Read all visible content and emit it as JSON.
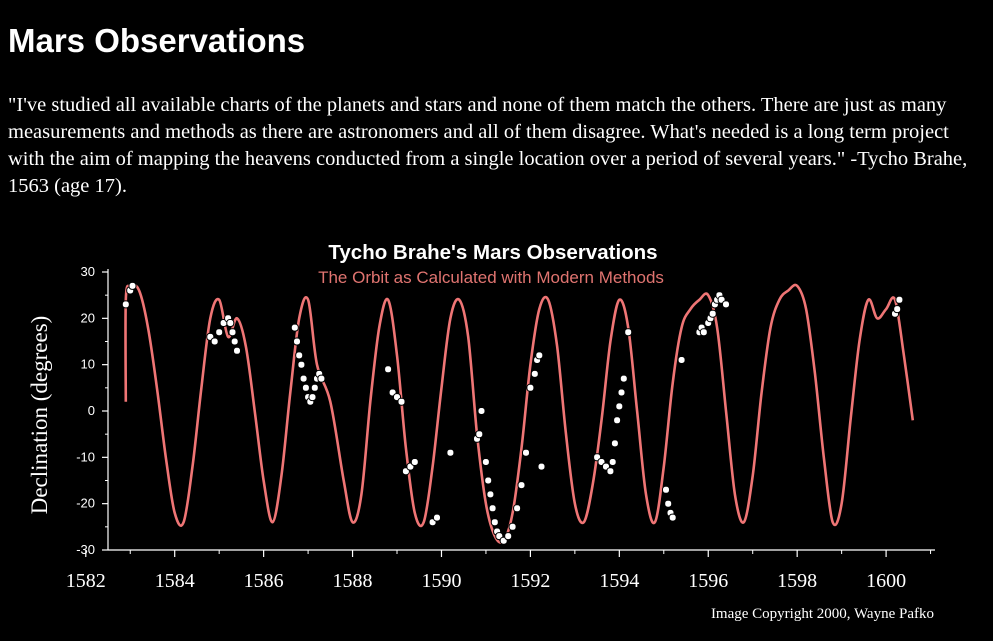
{
  "page": {
    "title": "Mars Observations",
    "quote": "\"I've studied all available charts of the planets and stars and none of them match the others. There are just as many measurements and methods as there are astronomers and all of them disagree. What's needed is a long term project with the aim of mapping the heavens conducted from a single location over a period of several years.\" -Tycho Brahe, 1563 (age 17)."
  },
  "colors": {
    "background": "#000000",
    "text": "#ffffff",
    "orbit": "#ef7575",
    "subtitle": "#e07470"
  },
  "chart_data": {
    "type": "line",
    "title": "Tycho Brahe's Mars Observations",
    "subtitle": "The Orbit as Calculated with Modern Methods",
    "ylabel": "Declination (degrees)",
    "xlabel": "",
    "credit": "Image Copyright 2000, Wayne Pafko",
    "xlim": [
      1581.6,
      1601.1
    ],
    "ylim": [
      -30,
      30
    ],
    "x_ticks": [
      1582,
      1584,
      1586,
      1588,
      1590,
      1592,
      1594,
      1596,
      1598,
      1600
    ],
    "x_tick_labels": [
      "1582",
      "1584",
      "1586",
      "1588",
      "1590",
      "1592",
      "1594",
      "1596",
      "1598",
      "1600"
    ],
    "y_ticks": [
      30,
      20,
      10,
      0,
      -10,
      -20,
      -30
    ],
    "y_tick_labels": [
      "30",
      "20",
      "10",
      "0",
      "-10",
      "-20",
      "-30"
    ],
    "grid": false,
    "legend": "none",
    "series": [
      {
        "type": "line",
        "x": [
          1582.9,
          1582.9,
          1583.0,
          1583.2,
          1583.4,
          1583.6,
          1583.8,
          1584.0,
          1584.2,
          1584.4,
          1584.6,
          1584.8,
          1585.0,
          1585.2,
          1585.4,
          1585.6,
          1585.8,
          1586.0,
          1586.2,
          1586.4,
          1586.6,
          1586.8,
          1587.0,
          1587.2,
          1587.5,
          1587.8,
          1588.0,
          1588.2,
          1588.4,
          1588.6,
          1588.8,
          1589.0,
          1589.2,
          1589.4,
          1589.6,
          1589.8,
          1590.0,
          1590.2,
          1590.4,
          1590.6,
          1590.8,
          1591.0,
          1591.2,
          1591.4,
          1591.6,
          1591.8,
          1592.0,
          1592.2,
          1592.4,
          1592.6,
          1592.8,
          1593.0,
          1593.2,
          1593.4,
          1593.6,
          1593.8,
          1594.0,
          1594.2,
          1594.4,
          1594.6,
          1594.8,
          1595.0,
          1595.2,
          1595.4,
          1595.6,
          1595.8,
          1596.0,
          1596.2,
          1596.4,
          1596.6,
          1596.8,
          1597.0,
          1597.2,
          1597.4,
          1597.6,
          1597.8,
          1598.0,
          1598.2,
          1598.4,
          1598.6,
          1598.8,
          1599.0,
          1599.2,
          1599.4,
          1599.6,
          1599.8,
          1600.0,
          1600.2,
          1600.4,
          1600.6
        ],
        "y": [
          2,
          24,
          27,
          26,
          18,
          5,
          -10,
          -22,
          -24,
          -12,
          5,
          20,
          24,
          16,
          20,
          14,
          0,
          -15,
          -24,
          -14,
          4,
          20,
          24,
          10,
          2,
          -15,
          -24,
          -18,
          2,
          18,
          24,
          12,
          -8,
          -22,
          -24,
          -12,
          5,
          20,
          24,
          16,
          -5,
          -20,
          -27,
          -28,
          -22,
          -8,
          10,
          22,
          24,
          14,
          -5,
          -20,
          -24,
          -16,
          -2,
          15,
          24,
          18,
          0,
          -18,
          -24,
          -12,
          6,
          18,
          22,
          24,
          25,
          18,
          0,
          -18,
          -24,
          -14,
          4,
          18,
          24,
          26,
          27,
          22,
          8,
          -10,
          -24,
          -20,
          -2,
          15,
          24,
          20,
          22,
          24,
          12,
          -2
        ]
      },
      {
        "type": "scatter",
        "x": [
          1582.9,
          1583.0,
          1583.05,
          1584.8,
          1584.9,
          1585.0,
          1585.1,
          1585.2,
          1585.25,
          1585.3,
          1585.35,
          1585.4,
          1586.7,
          1586.75,
          1586.8,
          1586.85,
          1586.9,
          1586.95,
          1587.0,
          1587.05,
          1587.1,
          1587.15,
          1587.2,
          1587.25,
          1587.3,
          1588.8,
          1588.9,
          1589.0,
          1589.1,
          1589.2,
          1589.3,
          1589.4,
          1589.8,
          1589.9,
          1590.2,
          1590.8,
          1590.85,
          1590.9,
          1591.0,
          1591.05,
          1591.1,
          1591.15,
          1591.2,
          1591.25,
          1591.3,
          1591.4,
          1591.5,
          1591.6,
          1591.7,
          1591.8,
          1591.9,
          1592.0,
          1592.1,
          1592.15,
          1592.2,
          1592.25,
          1593.5,
          1593.6,
          1593.7,
          1593.8,
          1593.85,
          1593.9,
          1593.95,
          1594.0,
          1594.05,
          1594.1,
          1594.2,
          1595.05,
          1595.1,
          1595.15,
          1595.2,
          1595.4,
          1595.8,
          1595.85,
          1595.9,
          1596.0,
          1596.05,
          1596.1,
          1596.15,
          1596.2,
          1596.25,
          1596.3,
          1596.4,
          1600.2,
          1600.25,
          1600.3
        ],
        "y": [
          23,
          26,
          27,
          16,
          15,
          17,
          19,
          20,
          19,
          17,
          15,
          13,
          18,
          15,
          12,
          10,
          7,
          5,
          3,
          2,
          3,
          5,
          7,
          8,
          7,
          9,
          4,
          3,
          2,
          -13,
          -12,
          -11,
          -24,
          -23,
          -9,
          -6,
          -5,
          0,
          -11,
          -15,
          -18,
          -21,
          -24,
          -26,
          -27,
          -28,
          -27,
          -25,
          -21,
          -16,
          -9,
          5,
          8,
          11,
          12,
          -12,
          -10,
          -11,
          -12,
          -13,
          -11,
          -7,
          -2,
          1,
          4,
          7,
          17,
          -17,
          -20,
          -22,
          -23,
          11,
          17,
          18,
          17,
          19,
          20,
          21,
          23,
          24,
          25,
          24,
          23,
          21,
          22,
          24
        ]
      }
    ]
  }
}
